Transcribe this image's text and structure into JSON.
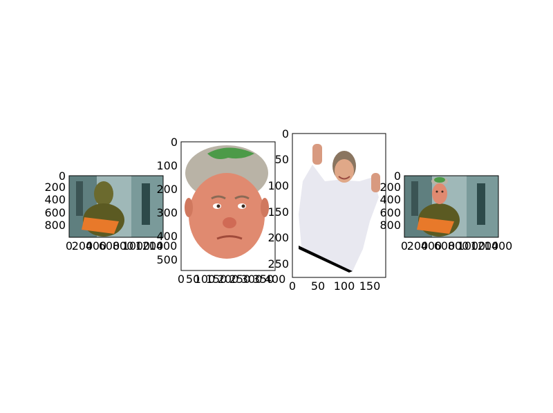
{
  "colors": {
    "axes_frame": "#000000",
    "grinch_fur": "#6b6a2e",
    "grinch_book": "#e8792a",
    "grinch_bg": "#9fb8b8",
    "skin": "#e08a70",
    "hair": "#b9b3a6",
    "hair_patch": "#4c9a48",
    "suit": "#e8e8f0"
  },
  "chart_data": [
    {
      "type": "image",
      "name": "panel-1",
      "xticks": [
        "0",
        "200",
        "400",
        "600",
        "800",
        "1000",
        "1200",
        "1400"
      ],
      "yticks": [
        "0",
        "200",
        "400",
        "600",
        "800"
      ],
      "xlim": [
        0,
        1400
      ],
      "ylim": [
        0,
        900
      ]
    },
    {
      "type": "image",
      "name": "panel-2",
      "xticks": [
        "0",
        "50",
        "100",
        "150",
        "200",
        "250",
        "300",
        "350",
        "400"
      ],
      "yticks": [
        "0",
        "100",
        "200",
        "300",
        "400",
        "500"
      ],
      "xlim": [
        0,
        400
      ],
      "ylim": [
        0,
        550
      ]
    },
    {
      "type": "image",
      "name": "panel-3",
      "xticks": [
        "0",
        "50",
        "100",
        "150"
      ],
      "yticks": [
        "0",
        "50",
        "100",
        "150",
        "200",
        "250"
      ],
      "xlim": [
        0,
        180
      ],
      "ylim": [
        0,
        270
      ]
    },
    {
      "type": "image",
      "name": "panel-4",
      "xticks": [
        "0",
        "200",
        "400",
        "600",
        "800",
        "1000",
        "1200",
        "1400"
      ],
      "yticks": [
        "0",
        "200",
        "400",
        "600",
        "800"
      ],
      "xlim": [
        0,
        1400
      ],
      "ylim": [
        0,
        900
      ]
    }
  ]
}
